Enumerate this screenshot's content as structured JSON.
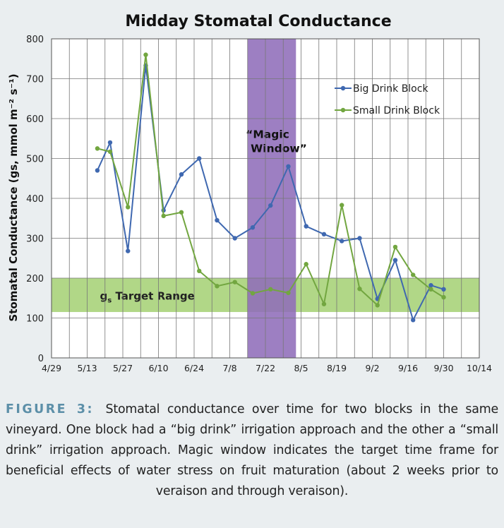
{
  "chart_data": {
    "type": "line",
    "title": "Midday Stomatal Conductance",
    "ylabel": "Stomatal Conductance (gs, mmol m⁻² s⁻¹)",
    "ylim": [
      0,
      800
    ],
    "yticks": [
      0,
      100,
      200,
      300,
      400,
      500,
      600,
      700,
      800
    ],
    "xlim": [
      0,
      168
    ],
    "xticks": [
      {
        "label": "4/29",
        "day": 0
      },
      {
        "label": "5/13",
        "day": 14
      },
      {
        "label": "5/27",
        "day": 28
      },
      {
        "label": "6/10",
        "day": 42
      },
      {
        "label": "6/24",
        "day": 56
      },
      {
        "label": "7/8",
        "day": 70
      },
      {
        "label": "7/22",
        "day": 84
      },
      {
        "label": "8/5",
        "day": 98
      },
      {
        "label": "8/19",
        "day": 112
      },
      {
        "label": "9/2",
        "day": 126
      },
      {
        "label": "9/16",
        "day": 140
      },
      {
        "label": "9/30",
        "day": 154
      },
      {
        "label": "10/14",
        "day": 168
      }
    ],
    "grid": true,
    "legend_position": "top-right",
    "magic_window": {
      "label_line1": "“Magic",
      "label_line2": "Window”",
      "start_day": 77,
      "end_day": 96,
      "color": "#8f6dba"
    },
    "target_range": {
      "label": "g",
      "label_sub": "s",
      "label_rest": " Target Range",
      "low": 115,
      "high": 200,
      "color": "#a8d37a"
    },
    "series": [
      {
        "name": "Big Drink Block",
        "color": "#3f68b0",
        "points": [
          [
            18,
            470
          ],
          [
            23,
            540
          ],
          [
            30,
            268
          ],
          [
            37,
            733
          ],
          [
            44,
            370
          ],
          [
            51,
            460
          ],
          [
            58,
            500
          ],
          [
            65,
            345
          ],
          [
            72,
            300
          ],
          [
            79,
            327
          ],
          [
            86,
            382
          ],
          [
            93,
            480
          ],
          [
            100,
            330
          ],
          [
            107,
            310
          ],
          [
            114,
            293
          ],
          [
            121,
            300
          ],
          [
            128,
            148
          ],
          [
            135,
            245
          ],
          [
            142,
            95
          ],
          [
            149,
            182
          ],
          [
            154,
            172
          ]
        ]
      },
      {
        "name": "Small Drink Block",
        "color": "#72a640",
        "points": [
          [
            18,
            525
          ],
          [
            23,
            517
          ],
          [
            30,
            378
          ],
          [
            37,
            760
          ],
          [
            44,
            356
          ],
          [
            51,
            365
          ],
          [
            58,
            218
          ],
          [
            65,
            180
          ],
          [
            72,
            190
          ],
          [
            79,
            162
          ],
          [
            86,
            172
          ],
          [
            93,
            163
          ],
          [
            100,
            235
          ],
          [
            107,
            135
          ],
          [
            114,
            383
          ],
          [
            121,
            173
          ],
          [
            128,
            132
          ],
          [
            135,
            278
          ],
          [
            142,
            208
          ],
          [
            149,
            172
          ],
          [
            154,
            152
          ]
        ]
      }
    ]
  },
  "caption": {
    "label": "FIGURE 3:",
    "text": "Stomatal conductance over time for two blocks in the same vineyard. One block had a “big drink” irrigation approach and the other a “small drink” irrigation approach. Magic window indicates the target time frame for beneficial effects of water stress on fruit maturation (about 2 weeks prior to veraison and through veraison)."
  }
}
